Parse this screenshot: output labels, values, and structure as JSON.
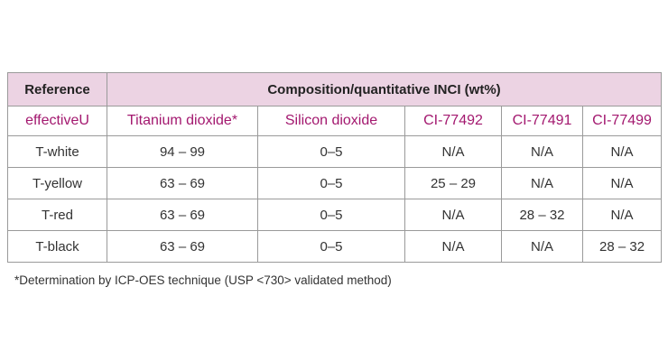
{
  "header": {
    "reference": "Reference",
    "composition": "Composition/quantitative INCI (wt%)"
  },
  "columns": [
    "effectiveU",
    "Titanium dioxide*",
    "Silicon dioxide",
    "CI-77492",
    "CI-77491",
    "CI-77499"
  ],
  "rows": [
    [
      "T-white",
      "94 – 99",
      "0–5",
      "N/A",
      "N/A",
      "N/A"
    ],
    [
      "T-yellow",
      "63 – 69",
      "0–5",
      "25 – 29",
      "N/A",
      "N/A"
    ],
    [
      "T-red",
      "63 – 69",
      "0–5",
      "N/A",
      "28 – 32",
      "N/A"
    ],
    [
      "T-black",
      "63 – 69",
      "0–5",
      "N/A",
      "N/A",
      "28 – 32"
    ]
  ],
  "footnote": "*Determination by ICP-OES technique (USP <730> validated method)"
}
